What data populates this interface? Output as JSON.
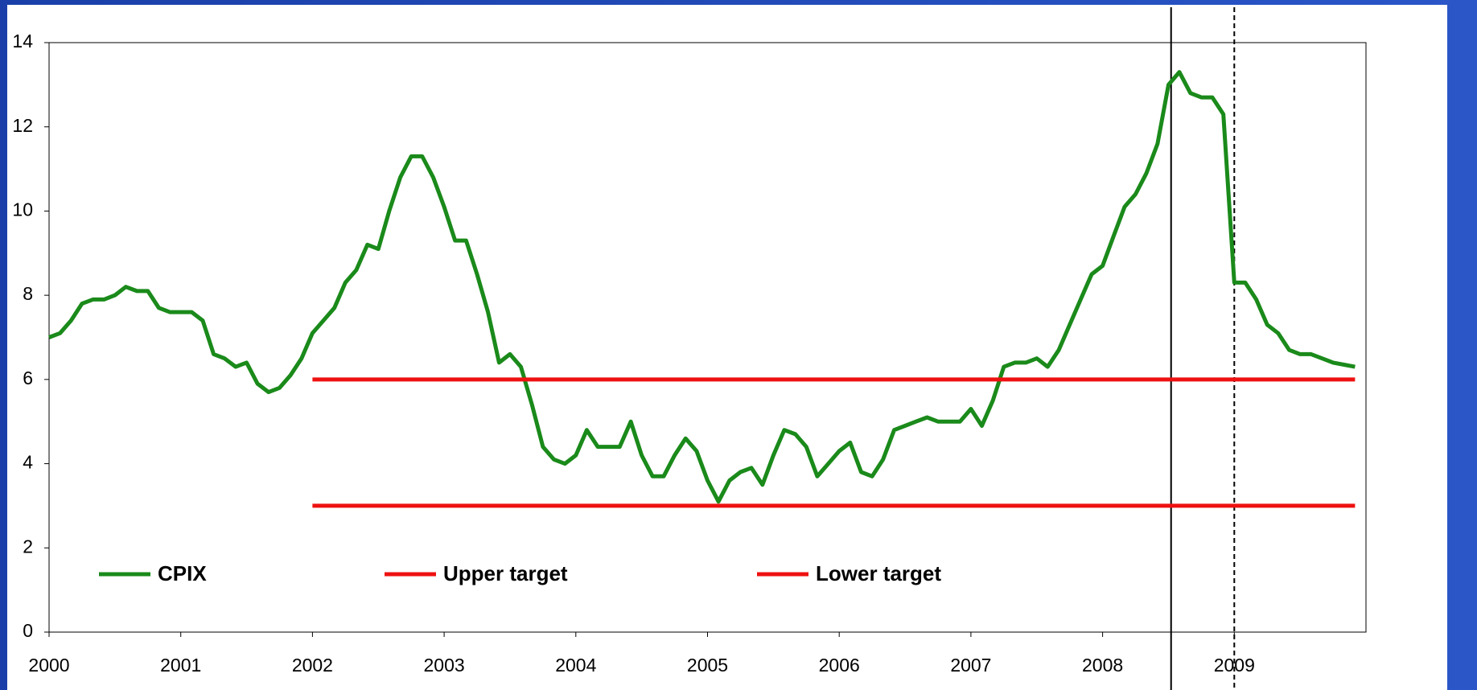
{
  "chart_data": {
    "type": "line",
    "x": [
      2000,
      2000.083,
      2000.167,
      2000.25,
      2000.333,
      2000.417,
      2000.5,
      2000.583,
      2000.667,
      2000.75,
      2000.833,
      2000.917,
      2001,
      2001.083,
      2001.167,
      2001.25,
      2001.333,
      2001.417,
      2001.5,
      2001.583,
      2001.667,
      2001.75,
      2001.833,
      2001.917,
      2002,
      2002.083,
      2002.167,
      2002.25,
      2002.333,
      2002.417,
      2002.5,
      2002.583,
      2002.667,
      2002.75,
      2002.833,
      2002.917,
      2003,
      2003.083,
      2003.167,
      2003.25,
      2003.333,
      2003.417,
      2003.5,
      2003.583,
      2003.667,
      2003.75,
      2003.833,
      2003.917,
      2004,
      2004.083,
      2004.167,
      2004.25,
      2004.333,
      2004.417,
      2004.5,
      2004.583,
      2004.667,
      2004.75,
      2004.833,
      2004.917,
      2005,
      2005.083,
      2005.167,
      2005.25,
      2005.333,
      2005.417,
      2005.5,
      2005.583,
      2005.667,
      2005.75,
      2005.833,
      2005.917,
      2006,
      2006.083,
      2006.167,
      2006.25,
      2006.333,
      2006.417,
      2006.5,
      2006.583,
      2006.667,
      2006.75,
      2006.833,
      2006.917,
      2007,
      2007.083,
      2007.167,
      2007.25,
      2007.333,
      2007.417,
      2007.5,
      2007.583,
      2007.667,
      2007.75,
      2007.833,
      2007.917,
      2008,
      2008.083,
      2008.167,
      2008.25,
      2008.333,
      2008.417,
      2008.5,
      2008.583,
      2008.667,
      2008.75,
      2008.833,
      2008.917,
      2009,
      2009.083,
      2009.167,
      2009.25,
      2009.333,
      2009.417,
      2009.5,
      2009.583,
      2009.667,
      2009.75,
      2009.833,
      2009.917
    ],
    "series": [
      {
        "name": "CPIX",
        "color": "#1a8a1a",
        "values": [
          7.0,
          7.1,
          7.4,
          7.8,
          7.9,
          7.9,
          8.0,
          8.2,
          8.1,
          8.1,
          7.7,
          7.6,
          7.6,
          7.6,
          7.4,
          6.6,
          6.5,
          6.3,
          6.4,
          5.9,
          5.7,
          5.8,
          6.1,
          6.5,
          7.1,
          7.4,
          7.7,
          8.3,
          8.6,
          9.2,
          9.1,
          10.0,
          10.8,
          11.3,
          11.3,
          10.8,
          10.1,
          9.3,
          9.3,
          8.5,
          7.6,
          6.4,
          6.6,
          6.3,
          5.4,
          4.4,
          4.1,
          4.0,
          4.2,
          4.8,
          4.4,
          4.4,
          4.4,
          5.0,
          4.2,
          3.7,
          3.7,
          4.2,
          4.6,
          4.3,
          3.6,
          3.1,
          3.6,
          3.8,
          3.9,
          3.5,
          4.2,
          4.8,
          4.7,
          4.4,
          3.7,
          4.0,
          4.3,
          4.5,
          3.8,
          3.7,
          4.1,
          4.8,
          4.9,
          5.0,
          5.1,
          5.0,
          5.0,
          5.0,
          5.3,
          4.9,
          5.5,
          6.3,
          6.4,
          6.4,
          6.5,
          6.3,
          6.7,
          7.3,
          7.9,
          8.5,
          8.7,
          9.4,
          10.1,
          10.4,
          10.9,
          11.6,
          13.0,
          13.3,
          12.8,
          12.7,
          12.7,
          12.3,
          8.3,
          8.3,
          7.9,
          7.3,
          7.1,
          6.7,
          6.6,
          6.6,
          6.5,
          6.4,
          6.35,
          6.3
        ]
      },
      {
        "name": "Upper target",
        "color": "#ee1111",
        "x": [
          2002,
          2009.917
        ],
        "values": [
          6,
          6
        ]
      },
      {
        "name": "Lower target",
        "color": "#ee1111",
        "x": [
          2002,
          2009.917
        ],
        "values": [
          3,
          3
        ]
      }
    ],
    "xlim": [
      2000,
      2010
    ],
    "xticks": [
      2000,
      2001,
      2002,
      2003,
      2004,
      2005,
      2006,
      2007,
      2008,
      2009
    ],
    "ylim": [
      0,
      14
    ],
    "yticks": [
      0,
      2,
      4,
      6,
      8,
      10,
      12,
      14
    ],
    "vlines": [
      {
        "x": 2008.52,
        "style": "solid"
      },
      {
        "x": 2009,
        "style": "dashed"
      }
    ],
    "legend": "bottom-left",
    "grid": false
  }
}
